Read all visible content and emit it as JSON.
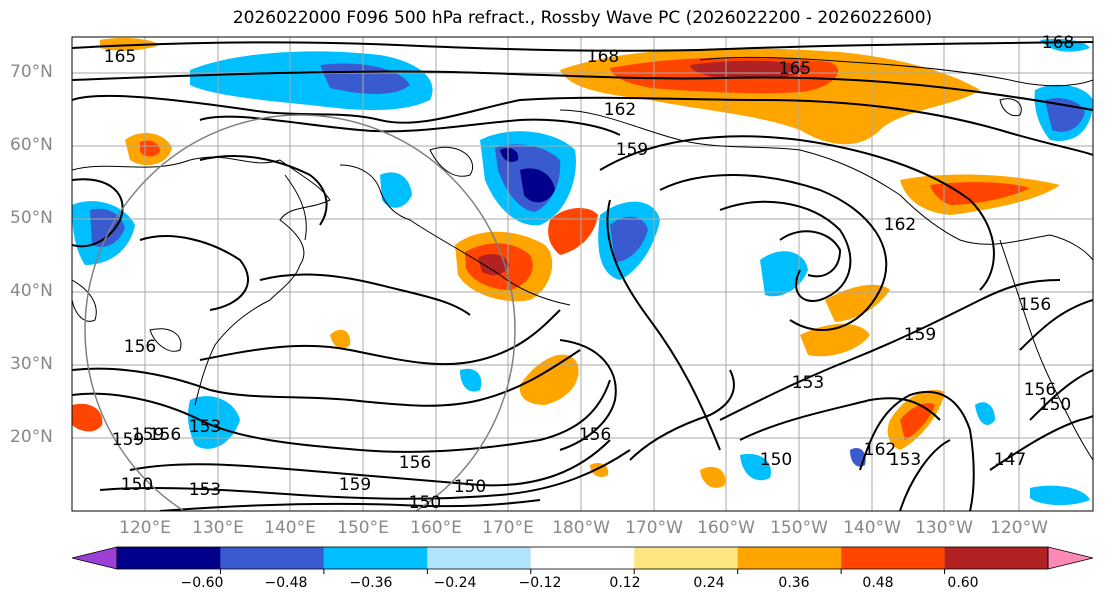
{
  "title": "2026022000 F096 500 hPa refract., Rossby Wave PC (2026022200 - 2026022600)",
  "lat_labels": [
    "70°N",
    "60°N",
    "50°N",
    "40°N",
    "30°N",
    "20°N"
  ],
  "lon_labels": [
    "120°E",
    "130°E",
    "140°E",
    "150°E",
    "160°E",
    "170°E",
    "180°W",
    "170°W",
    "160°W",
    "150°W",
    "140°W",
    "130°W",
    "120°W"
  ],
  "colorbar": {
    "ticks": [
      "−0.60",
      "−0.48",
      "−0.36",
      "−0.24",
      "−0.12",
      "0.12",
      "0.24",
      "0.36",
      "0.48",
      "0.60"
    ],
    "colors": [
      "#9b3fd6",
      "#00008b",
      "#3a5bd0",
      "#00bfff",
      "#b3e4ff",
      "#ffffff",
      "#ffe680",
      "#ffa500",
      "#ff4500",
      "#b22222",
      "#ff88b5"
    ]
  },
  "contour_labels": [
    "165",
    "168",
    "165",
    "168",
    "162",
    "159",
    "162",
    "159",
    "156",
    "156",
    "153",
    "150",
    "147",
    "156",
    "159",
    "150",
    "150",
    "153",
    "156",
    "153",
    "156",
    "159",
    "162",
    "150",
    "156",
    "159",
    "153",
    "150"
  ]
}
